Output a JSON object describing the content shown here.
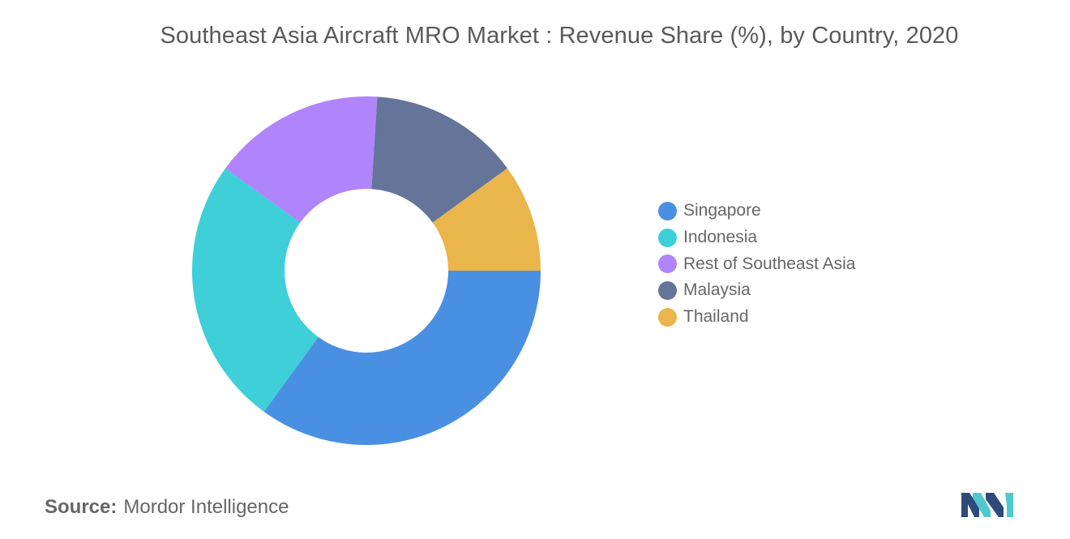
{
  "chart_data": {
    "type": "donut",
    "title": "Southeast Asia Aircraft MRO Market : Revenue Share (%), by Country, 2020",
    "categories": [
      "Singapore",
      "Indonesia",
      "Rest of Southeast Asia",
      "Malaysia",
      "Thailand"
    ],
    "values": [
      35,
      25,
      16,
      14,
      10
    ],
    "colors": [
      "#4a90e2",
      "#3ecfd8",
      "#b084fa",
      "#647599",
      "#eab54a"
    ],
    "legend_position": "right",
    "start_angle_deg": 0,
    "direction": "clockwise"
  },
  "source": {
    "label": "Source:",
    "value": "Mordor Intelligence"
  },
  "logo": {
    "icon": "mordor-intelligence-logo-icon",
    "colors": [
      "#2e4a7a",
      "#4ec9cf"
    ]
  }
}
